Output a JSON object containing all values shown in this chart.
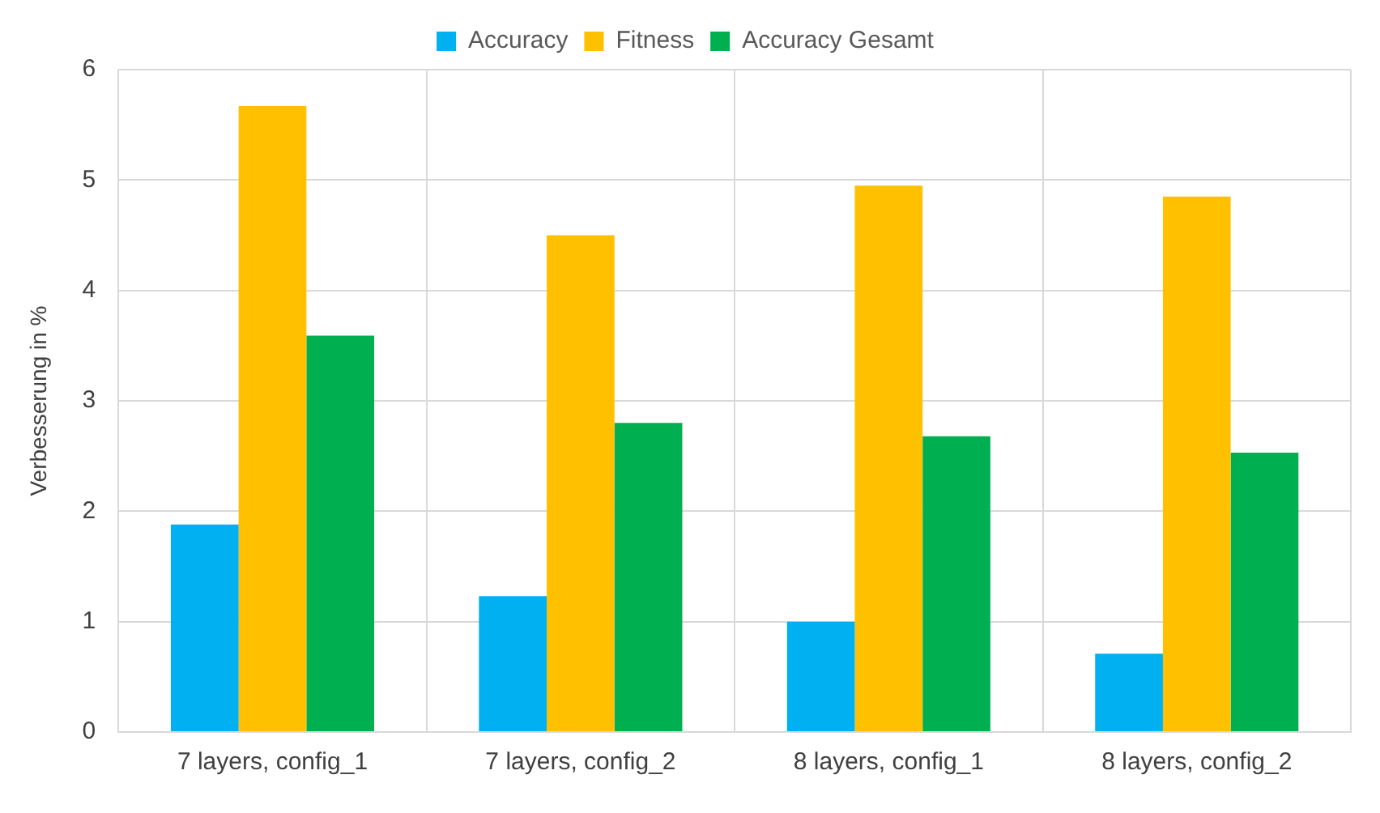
{
  "chart_data": {
    "type": "bar",
    "ylabel": "Verbesserung in %",
    "categories": [
      "7 layers, config_1",
      "7 layers, config_2",
      "8 layers, config_1",
      "8 layers, config_2"
    ],
    "series": [
      {
        "name": "Accuracy",
        "color": "#00b0f0",
        "values": [
          1.88,
          1.23,
          1.0,
          0.71
        ]
      },
      {
        "name": "Fitness",
        "color": "#ffc000",
        "values": [
          5.67,
          4.5,
          4.95,
          4.85
        ]
      },
      {
        "name": "Accuracy Gesamt",
        "color": "#00b050",
        "values": [
          3.59,
          2.8,
          2.68,
          2.53
        ]
      }
    ],
    "ylim": [
      0,
      6
    ],
    "yticks": [
      0,
      1,
      2,
      3,
      4,
      5,
      6
    ],
    "grid": true,
    "legend": "top"
  }
}
